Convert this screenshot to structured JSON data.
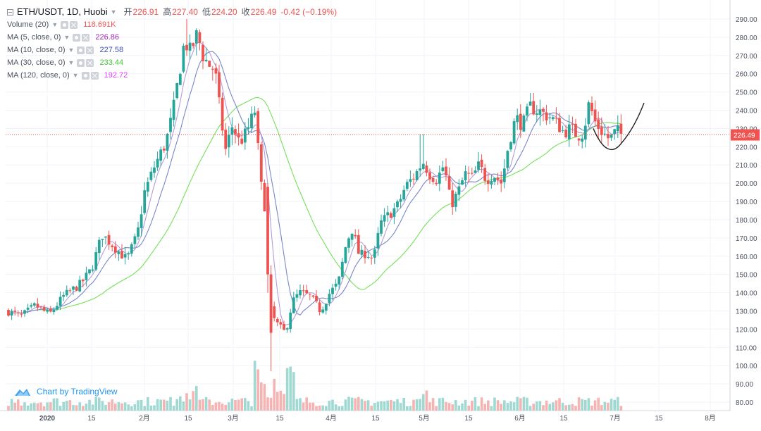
{
  "header": {
    "symbol": "ETH/USDT, 1D, Huobi",
    "open_label": "开",
    "open": "226.91",
    "high_label": "高",
    "high": "227.40",
    "low_label": "低",
    "low": "224.20",
    "close_label": "收",
    "close": "226.49",
    "change": "-0.42 (−0.19%)"
  },
  "indicators": [
    {
      "label": "Volume (20)",
      "value": "118.691K",
      "color": "#ef5350"
    },
    {
      "label": "MA (5, close, 0)",
      "value": "226.86",
      "color": "#9c27b0"
    },
    {
      "label": "MA (10, close, 0)",
      "value": "227.58",
      "color": "#3f51b5"
    },
    {
      "label": "MA (30, close, 0)",
      "value": "233.44",
      "color": "#4caf50"
    },
    {
      "label": "MA (120, close, 0)",
      "value": "192.72",
      "color": "#e040fb"
    }
  ],
  "branding": {
    "text": "Chart by TradingView"
  },
  "colors": {
    "up": "#26a69a",
    "down": "#ef5350",
    "ma5": "#b39ddb",
    "ma10": "#7986cb",
    "ma30": "#76e05a",
    "ma120": "#f06cf0",
    "last_price_line": "#ef5350",
    "pattern": "#222222"
  },
  "chart_data": {
    "type": "candlestick",
    "title": "ETH/USDT, 1D, Huobi",
    "y_axis_ticks": [
      "290.00",
      "280.00",
      "270.00",
      "260.00",
      "250.00",
      "240.00",
      "230.00",
      "220.00",
      "210.00",
      "200.00",
      "190.00",
      "180.00",
      "170.00",
      "160.00",
      "150.00",
      "140.00",
      "130.00",
      "120.00",
      "110.00",
      "100.00",
      "90.00",
      "80.00"
    ],
    "x_axis_ticks": [
      "2020",
      "15",
      "2月",
      "15",
      "3月",
      "15",
      "4月",
      "15",
      "5月",
      "15",
      "6月",
      "15",
      "7月",
      "15",
      "8月"
    ],
    "y_range": [
      75,
      296
    ],
    "last_price": "226.49",
    "candles_sampled": [
      {
        "date": "2020-01-01",
        "o": 128,
        "h": 133,
        "l": 126,
        "c": 130
      },
      {
        "date": "2020-01-15",
        "o": 140,
        "h": 148,
        "l": 138,
        "c": 145
      },
      {
        "date": "2020-01-25",
        "o": 160,
        "h": 178,
        "l": 155,
        "c": 170
      },
      {
        "date": "2020-02-08",
        "o": 205,
        "h": 230,
        "l": 200,
        "c": 225
      },
      {
        "date": "2020-02-14",
        "o": 270,
        "h": 290,
        "l": 255,
        "c": 280
      },
      {
        "date": "2020-02-20",
        "o": 275,
        "h": 285,
        "l": 240,
        "c": 250
      },
      {
        "date": "2020-03-01",
        "o": 225,
        "h": 240,
        "l": 215,
        "c": 230
      },
      {
        "date": "2020-03-08",
        "o": 240,
        "h": 248,
        "l": 195,
        "c": 200
      },
      {
        "date": "2020-03-12",
        "o": 195,
        "h": 197,
        "l": 110,
        "c": 112
      },
      {
        "date": "2020-03-20",
        "o": 130,
        "h": 140,
        "l": 118,
        "c": 135
      },
      {
        "date": "2020-04-05",
        "o": 140,
        "h": 146,
        "l": 135,
        "c": 145
      },
      {
        "date": "2020-04-20",
        "o": 175,
        "h": 180,
        "l": 160,
        "c": 172
      },
      {
        "date": "2020-05-01",
        "o": 205,
        "h": 227,
        "l": 195,
        "c": 212
      },
      {
        "date": "2020-05-10",
        "o": 210,
        "h": 213,
        "l": 176,
        "c": 190
      },
      {
        "date": "2020-05-20",
        "o": 205,
        "h": 212,
        "l": 198,
        "c": 208
      },
      {
        "date": "2020-06-01",
        "o": 225,
        "h": 248,
        "l": 220,
        "c": 240
      },
      {
        "date": "2020-06-15",
        "o": 232,
        "h": 240,
        "l": 218,
        "c": 228
      },
      {
        "date": "2020-06-24",
        "o": 238,
        "h": 248,
        "l": 230,
        "c": 242
      },
      {
        "date": "2020-07-03",
        "o": 226.91,
        "h": 227.4,
        "l": 224.2,
        "c": 226.49
      }
    ],
    "moving_averages": [
      {
        "name": "MA (5, close, 0)",
        "last": 226.86
      },
      {
        "name": "MA (10, close, 0)",
        "last": 227.58
      },
      {
        "name": "MA (30, close, 0)",
        "last": 233.44
      },
      {
        "name": "MA (120, close, 0)",
        "last": 192.72
      }
    ],
    "volume_last": "118.691K",
    "grid": true
  }
}
